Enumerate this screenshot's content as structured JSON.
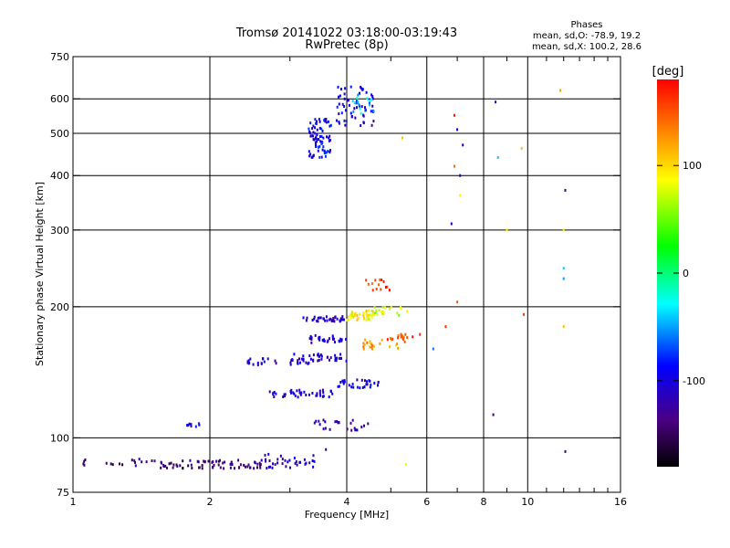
{
  "chart_data": {
    "type": "scatter",
    "title": "Tromsø 20141022 03:18:00-03:19:43",
    "subtitle": "RwPretec (8p)",
    "xlabel": "Frequency [MHz]",
    "ylabel": "Stationary phase Virtual Height [km]",
    "xscale": "log",
    "yscale": "log",
    "xlim": [
      1,
      16
    ],
    "ylim": [
      75,
      750
    ],
    "xticks": [
      1,
      2,
      4,
      6,
      8,
      10,
      16
    ],
    "xtick_labels": [
      "1",
      "2",
      "4",
      "6",
      "8",
      "10",
      "16"
    ],
    "yticks": [
      75,
      100,
      200,
      300,
      400,
      500,
      600,
      750
    ],
    "ytick_labels": [
      "75",
      "100",
      "200",
      "300",
      "400",
      "500",
      "600",
      "750"
    ],
    "grid": true,
    "phase_info": {
      "title": "Phases",
      "line1": "mean, sd,O: -78.9, 19.2",
      "line2": "mean, sd,X: 100.2, 28.6"
    },
    "colorbar": {
      "label": "[deg]",
      "range": [
        -180,
        180
      ],
      "ticks": [
        100,
        0,
        -100
      ],
      "tick_labels": [
        "100",
        "0",
        "-100"
      ]
    },
    "clusters": [
      {
        "f": [
          1.05,
          1.55
        ],
        "h": [
          86,
          90
        ],
        "phase": -140,
        "n": 18
      },
      {
        "f": [
          1.55,
          2.6
        ],
        "h": [
          85,
          89
        ],
        "phase": -140,
        "n": 70
      },
      {
        "f": [
          2.6,
          3.4
        ],
        "h": [
          85,
          92
        ],
        "phase": -110,
        "n": 35
      },
      {
        "f": [
          1.78,
          1.9
        ],
        "h": [
          106,
          109
        ],
        "phase": -100,
        "n": 8
      },
      {
        "f": [
          2.4,
          3.4
        ],
        "h": [
          147,
          152
        ],
        "phase": -105,
        "n": 30
      },
      {
        "f": [
          2.7,
          3.8
        ],
        "h": [
          124,
          129
        ],
        "phase": -105,
        "n": 40
      },
      {
        "f": [
          3.0,
          4.0
        ],
        "h": [
          150,
          156
        ],
        "phase": -105,
        "n": 35
      },
      {
        "f": [
          3.2,
          4.0
        ],
        "h": [
          185,
          190
        ],
        "phase": -110,
        "n": 35
      },
      {
        "f": [
          3.3,
          4.0
        ],
        "h": [
          165,
          172
        ],
        "phase": -105,
        "n": 30
      },
      {
        "f": [
          3.4,
          4.6
        ],
        "h": [
          104,
          110
        ],
        "phase": -120,
        "n": 25
      },
      {
        "f": [
          3.8,
          4.7
        ],
        "h": [
          130,
          136
        ],
        "phase": -100,
        "n": 30
      },
      {
        "f": [
          4.0,
          4.6
        ],
        "h": [
          186,
          196
        ],
        "phase": 90,
        "n": 40
      },
      {
        "f": [
          4.5,
          5.5
        ],
        "h": [
          190,
          200
        ],
        "phase": 70,
        "n": 20
      },
      {
        "f": [
          4.3,
          5.3
        ],
        "h": [
          160,
          168
        ],
        "phase": 120,
        "n": 20
      },
      {
        "f": [
          4.9,
          5.5
        ],
        "h": [
          165,
          172
        ],
        "phase": 150,
        "n": 10
      },
      {
        "f": [
          4.4,
          5.0
        ],
        "h": [
          218,
          232
        ],
        "phase": 160,
        "n": 14
      },
      {
        "f": [
          3.3,
          3.7
        ],
        "h": [
          440,
          540
        ],
        "phase": -95,
        "n": 80
      },
      {
        "f": [
          3.8,
          4.6
        ],
        "h": [
          520,
          640
        ],
        "phase": -100,
        "n": 60
      },
      {
        "f": [
          4.1,
          4.6
        ],
        "h": [
          550,
          620
        ],
        "phase": -45,
        "n": 15
      },
      {
        "f": [
          5.2,
          5.8
        ],
        "h": [
          168,
          175
        ],
        "phase": 160,
        "n": 8
      }
    ],
    "sparse_points": [
      {
        "f": 6.9,
        "h": 550,
        "phase": 170
      },
      {
        "f": 6.9,
        "h": 420,
        "phase": 140
      },
      {
        "f": 7.0,
        "h": 510,
        "phase": -100
      },
      {
        "f": 7.1,
        "h": 400,
        "phase": -110
      },
      {
        "f": 7.1,
        "h": 360,
        "phase": 90
      },
      {
        "f": 7.2,
        "h": 470,
        "phase": -90
      },
      {
        "f": 6.8,
        "h": 310,
        "phase": -100
      },
      {
        "f": 6.6,
        "h": 180,
        "phase": 160
      },
      {
        "f": 7.0,
        "h": 205,
        "phase": 150
      },
      {
        "f": 8.5,
        "h": 590,
        "phase": -120
      },
      {
        "f": 8.6,
        "h": 440,
        "phase": -40
      },
      {
        "f": 8.4,
        "h": 113,
        "phase": -130
      },
      {
        "f": 9.7,
        "h": 462,
        "phase": 110
      },
      {
        "f": 9.8,
        "h": 192,
        "phase": 160
      },
      {
        "f": 11.8,
        "h": 627,
        "phase": 120
      },
      {
        "f": 12.1,
        "h": 370,
        "phase": -120
      },
      {
        "f": 12.0,
        "h": 300,
        "phase": 90
      },
      {
        "f": 12.0,
        "h": 245,
        "phase": -40
      },
      {
        "f": 12.0,
        "h": 232,
        "phase": -50
      },
      {
        "f": 12.0,
        "h": 180,
        "phase": 110
      },
      {
        "f": 12.1,
        "h": 93,
        "phase": -130
      },
      {
        "f": 9.0,
        "h": 300,
        "phase": 90
      },
      {
        "f": 5.4,
        "h": 87,
        "phase": 80
      },
      {
        "f": 5.3,
        "h": 488,
        "phase": 110
      },
      {
        "f": 6.2,
        "h": 160,
        "phase": -60
      },
      {
        "f": 3.6,
        "h": 94,
        "phase": -110
      }
    ]
  }
}
